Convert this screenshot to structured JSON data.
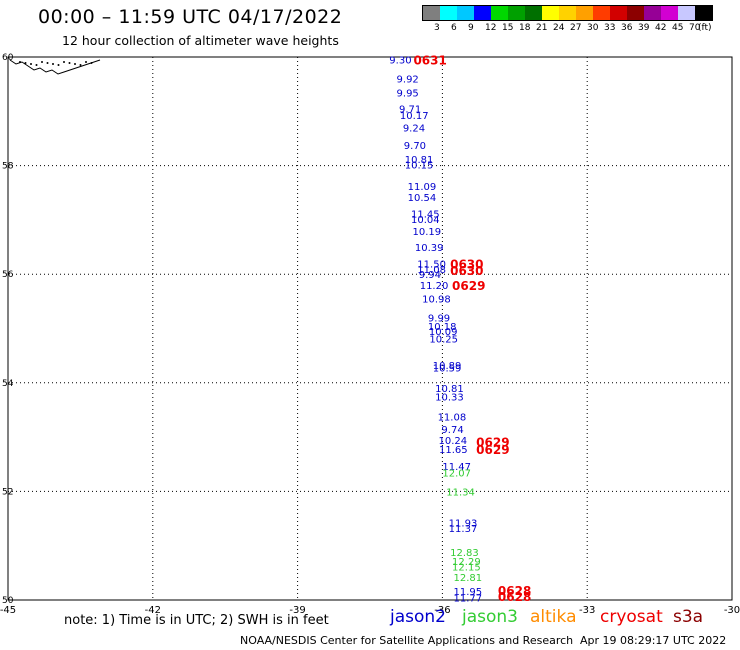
{
  "title": "00:00 – 11:59 UTC 04/17/2022",
  "subtitle": "12 hour collection of altimeter wave heights",
  "scale": {
    "colors": [
      "#7f7f7f",
      "#00ffff",
      "#00c8ff",
      "#0000ff",
      "#00d800",
      "#00a000",
      "#007000",
      "#ffff00",
      "#ffd200",
      "#ffa000",
      "#ff3c00",
      "#d20000",
      "#8c0000",
      "#960096",
      "#d200d2",
      "#c8c8ff",
      "#000000"
    ],
    "labels": [
      "3",
      "6",
      "9",
      "12",
      "15",
      "18",
      "21",
      "24",
      "27",
      "30",
      "33",
      "36",
      "39",
      "42",
      "45",
      "70",
      "(ft)"
    ]
  },
  "map": {
    "lon_ticks": [
      "-45",
      "-42",
      "-39",
      "-36",
      "-33",
      "-30"
    ],
    "lat_ticks": [
      "60",
      "58",
      "56",
      "54",
      "52",
      "50"
    ],
    "colors": {
      "jason2": "#0000cc",
      "jason3": "#33cc33",
      "cryosat": "#ee0000"
    },
    "swh_labels": [
      {
        "text": "9.30",
        "lat": 59.95,
        "lon": -37.1,
        "c": "jason2"
      },
      {
        "text": "9.92",
        "lat": 59.6,
        "lon": -36.95,
        "c": "jason2"
      },
      {
        "text": "9.95",
        "lat": 59.35,
        "lon": -36.95,
        "c": "jason2"
      },
      {
        "text": "9.71",
        "lat": 59.05,
        "lon": -36.9,
        "c": "jason2"
      },
      {
        "text": "10.17",
        "lat": 58.93,
        "lon": -36.88,
        "c": "jason2"
      },
      {
        "text": "9.24",
        "lat": 58.7,
        "lon": -36.82,
        "c": "jason2"
      },
      {
        "text": "9.70",
        "lat": 58.38,
        "lon": -36.8,
        "c": "jason2"
      },
      {
        "text": "10.81",
        "lat": 58.12,
        "lon": -36.78,
        "c": "jason2"
      },
      {
        "text": "10.15",
        "lat": 58.02,
        "lon": -36.78,
        "c": "jason2"
      },
      {
        "text": "11.09",
        "lat": 57.62,
        "lon": -36.72,
        "c": "jason2"
      },
      {
        "text": "10.54",
        "lat": 57.42,
        "lon": -36.72,
        "c": "jason2"
      },
      {
        "text": "11.45",
        "lat": 57.12,
        "lon": -36.65,
        "c": "jason2"
      },
      {
        "text": "10.04",
        "lat": 57.02,
        "lon": -36.65,
        "c": "jason2"
      },
      {
        "text": "10.19",
        "lat": 56.8,
        "lon": -36.62,
        "c": "jason2"
      },
      {
        "text": "10.39",
        "lat": 56.5,
        "lon": -36.57,
        "c": "jason2"
      },
      {
        "text": "11.50",
        "lat": 56.2,
        "lon": -36.52,
        "c": "jason2"
      },
      {
        "text": "11.08",
        "lat": 56.1,
        "lon": -36.52,
        "c": "jason2"
      },
      {
        "text": "9.94",
        "lat": 56.0,
        "lon": -36.49,
        "c": "jason2"
      },
      {
        "text": "11.20",
        "lat": 55.8,
        "lon": -36.47,
        "c": "jason2"
      },
      {
        "text": "10.98",
        "lat": 55.55,
        "lon": -36.42,
        "c": "jason2"
      },
      {
        "text": "9.99",
        "lat": 55.2,
        "lon": -36.3,
        "c": "jason2"
      },
      {
        "text": "10.18",
        "lat": 55.05,
        "lon": -36.3,
        "c": "jason2"
      },
      {
        "text": "10.09",
        "lat": 54.95,
        "lon": -36.28,
        "c": "jason2"
      },
      {
        "text": "10.25",
        "lat": 54.82,
        "lon": -36.27,
        "c": "jason2"
      },
      {
        "text": "10.89",
        "lat": 54.33,
        "lon": -36.2,
        "c": "jason2"
      },
      {
        "text": "10.59",
        "lat": 54.28,
        "lon": -36.2,
        "c": "jason2"
      },
      {
        "text": "10.81",
        "lat": 53.9,
        "lon": -36.15,
        "c": "jason2"
      },
      {
        "text": "10.33",
        "lat": 53.75,
        "lon": -36.15,
        "c": "jason2"
      },
      {
        "text": "11.08",
        "lat": 53.38,
        "lon": -36.1,
        "c": "jason2"
      },
      {
        "text": "9.74",
        "lat": 53.15,
        "lon": -36.02,
        "c": "jason2"
      },
      {
        "text": "10.24",
        "lat": 52.95,
        "lon": -36.08,
        "c": "jason2"
      },
      {
        "text": "11.65",
        "lat": 52.78,
        "lon": -36.07,
        "c": "jason2"
      },
      {
        "text": "11.47",
        "lat": 52.47,
        "lon": -36.0,
        "c": "jason2"
      },
      {
        "text": "12.07",
        "lat": 52.35,
        "lon": -36.0,
        "c": "jason3"
      },
      {
        "text": "11.34",
        "lat": 52.0,
        "lon": -35.92,
        "c": "jason3"
      },
      {
        "text": "11.93",
        "lat": 51.43,
        "lon": -35.87,
        "c": "jason2"
      },
      {
        "text": "11.37",
        "lat": 51.33,
        "lon": -35.87,
        "c": "jason2"
      },
      {
        "text": "12.83",
        "lat": 50.88,
        "lon": -35.84,
        "c": "jason3"
      },
      {
        "text": "12.29",
        "lat": 50.72,
        "lon": -35.8,
        "c": "jason3"
      },
      {
        "text": "12.15",
        "lat": 50.62,
        "lon": -35.8,
        "c": "jason3"
      },
      {
        "text": "12.81",
        "lat": 50.42,
        "lon": -35.77,
        "c": "jason3"
      },
      {
        "text": "11.95",
        "lat": 50.17,
        "lon": -35.77,
        "c": "jason2"
      },
      {
        "text": "11.77",
        "lat": 50.05,
        "lon": -35.77,
        "c": "jason2"
      }
    ],
    "time_labels": [
      {
        "text": "0631",
        "lat": 59.95,
        "lon": -36.6,
        "c": "cryosat"
      },
      {
        "text": "0630",
        "lat": 56.2,
        "lon": -35.84,
        "c": "cryosat"
      },
      {
        "text": "0630",
        "lat": 56.08,
        "lon": -35.84,
        "c": "cryosat"
      },
      {
        "text": "0629",
        "lat": 55.8,
        "lon": -35.8,
        "c": "cryosat"
      },
      {
        "text": "0629",
        "lat": 52.92,
        "lon": -35.3,
        "c": "cryosat"
      },
      {
        "text": "0629",
        "lat": 52.78,
        "lon": -35.3,
        "c": "cryosat"
      },
      {
        "text": "0628",
        "lat": 50.18,
        "lon": -34.85,
        "c": "cryosat"
      },
      {
        "text": "0628",
        "lat": 50.07,
        "lon": -34.85,
        "c": "cryosat"
      }
    ]
  },
  "note": "note: 1) Time is in UTC; 2) SWH is in feet",
  "satellites": [
    {
      "name": "jason2",
      "color": "#0000cc"
    },
    {
      "name": "jason3",
      "color": "#33cc33"
    },
    {
      "name": "altika",
      "color": "#ff8c00"
    },
    {
      "name": "cryosat",
      "color": "#ee0000"
    },
    {
      "name": "s3a",
      "color": "#8b0000"
    }
  ],
  "footer": "NOAA/NESDIS Center for Satellite Applications and Research",
  "footer_date": "Apr 19 08:29:17 UTC 2022"
}
